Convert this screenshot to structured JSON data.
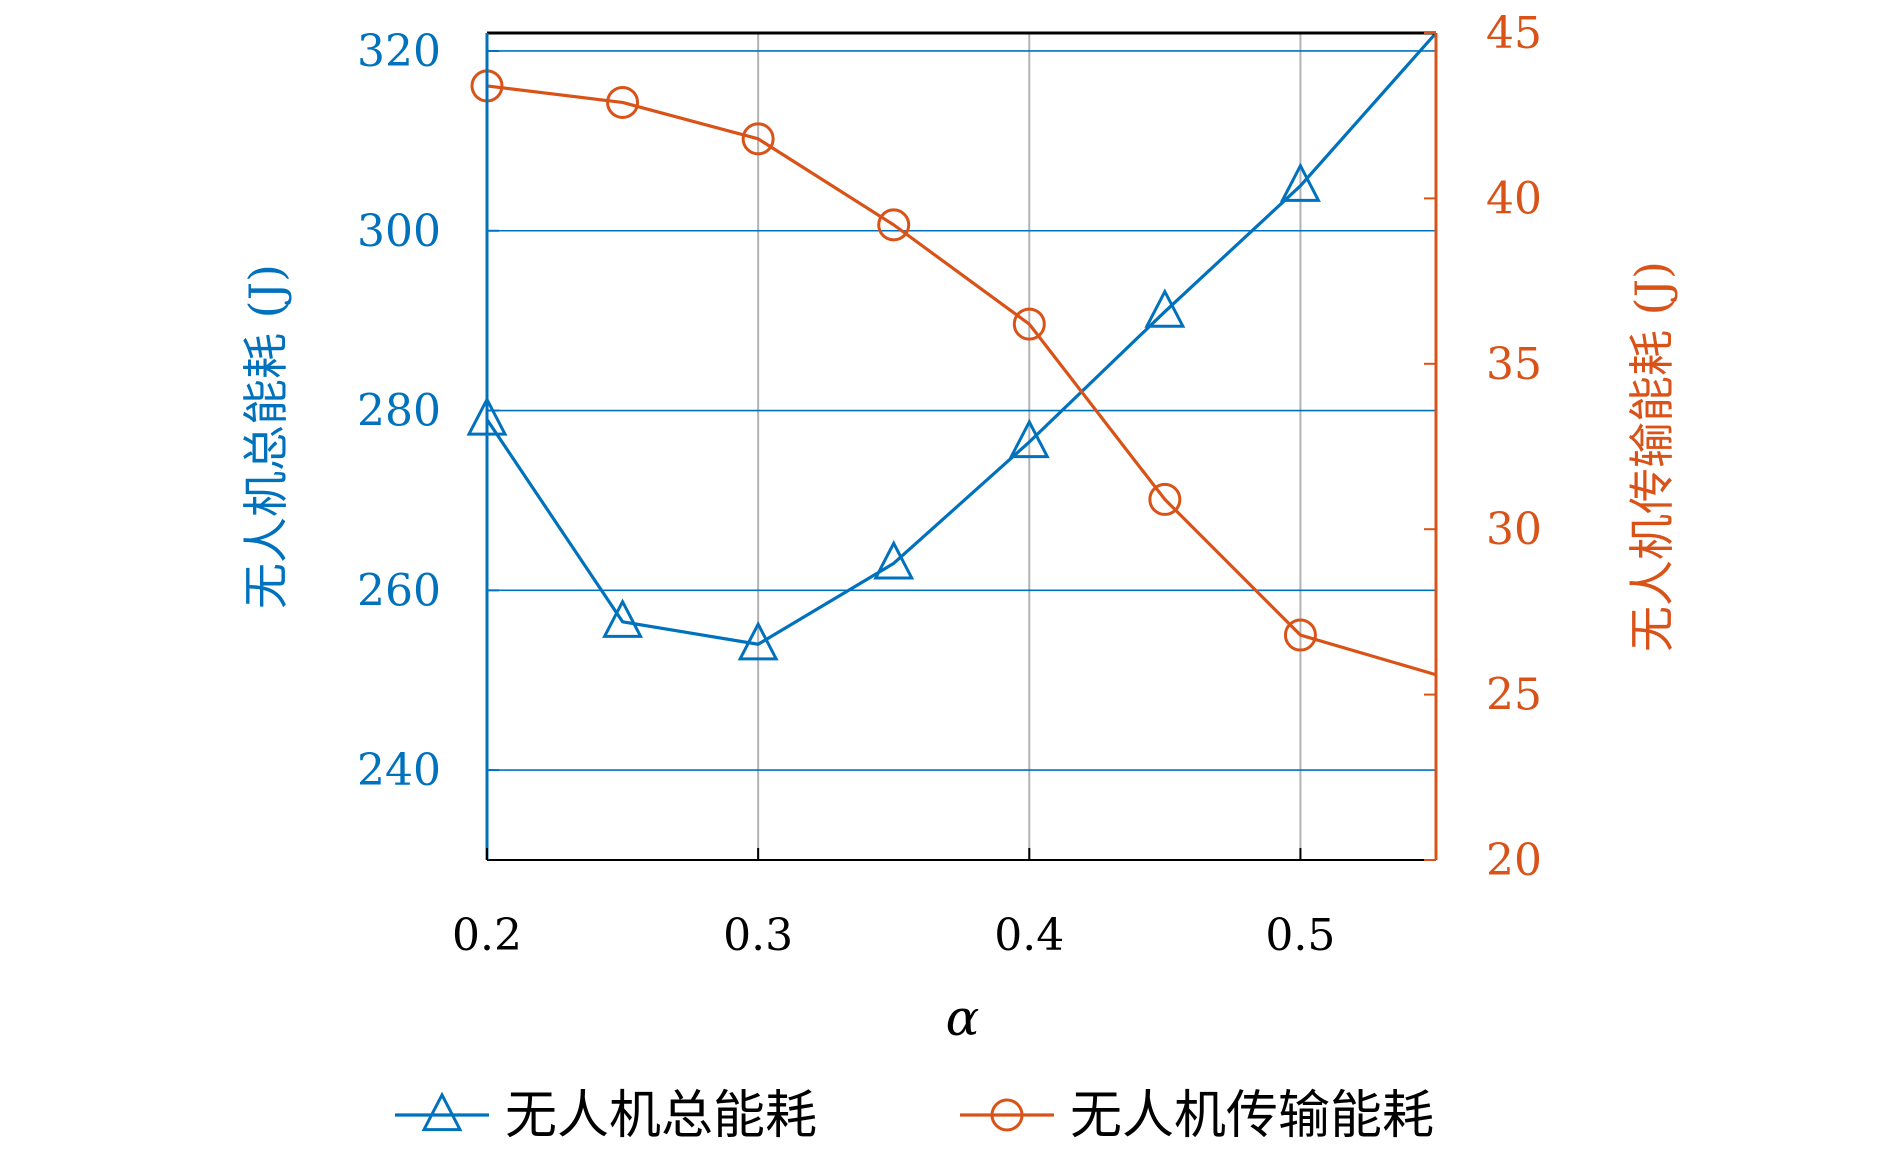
{
  "chart_data": {
    "type": "line",
    "x": [
      0.2,
      0.25,
      0.3,
      0.35,
      0.4,
      0.45,
      0.5,
      0.55
    ],
    "xlabel": "α",
    "xlim": [
      0.2,
      0.55
    ],
    "x_ticks": [
      0.2,
      0.3,
      0.4,
      0.5
    ],
    "x_tick_labels": [
      "0.2",
      "0.3",
      "0.4",
      "0.5"
    ],
    "grid": true,
    "legend_position": "bottom",
    "series": [
      {
        "name": "无人机总能耗",
        "axis": "left",
        "color": "#0072BD",
        "marker": "triangle",
        "values": [
          279,
          256.5,
          254,
          263,
          276.5,
          291,
          305,
          322
        ]
      },
      {
        "name": "无人机传输能耗",
        "axis": "right",
        "color": "#D95319",
        "marker": "circle",
        "values": [
          43.4,
          42.9,
          41.8,
          39.2,
          36.2,
          30.9,
          26.8,
          25.6
        ]
      }
    ],
    "left_axis": {
      "label": "无人机总能耗 (J)",
      "ylim": [
        230,
        322
      ],
      "ticks": [
        240,
        260,
        280,
        300,
        320
      ],
      "tick_labels": [
        "240",
        "260",
        "280",
        "300",
        "320"
      ],
      "color": "#0072BD"
    },
    "right_axis": {
      "label": "无人机传输能耗 (J)",
      "ylim": [
        20,
        45
      ],
      "ticks": [
        20,
        25,
        30,
        35,
        40,
        45
      ],
      "tick_labels": [
        "20",
        "25",
        "30",
        "35",
        "40",
        "45"
      ],
      "color": "#D95319"
    }
  }
}
